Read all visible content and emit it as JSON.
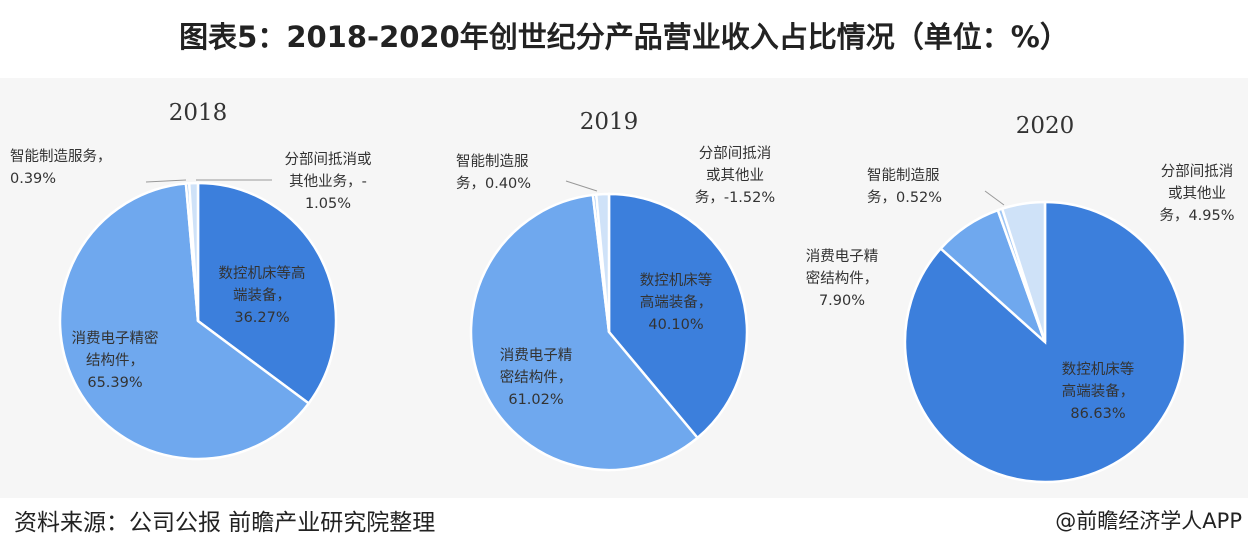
{
  "title": "图表5：2018-2020年创世纪分产品营业收入占比情况（单位：%）",
  "source": "资料来源：公司公报  前瞻产业研究院整理",
  "brand": "@前瞻经济学人APP",
  "colors": {
    "cnc": "#3c7fdc",
    "consumer": "#6fa8ee",
    "smart": "#9fc6f4",
    "other": "#cfe2f8",
    "gap": "#ffffff"
  },
  "chart_data": [
    {
      "type": "pie",
      "title": "2018",
      "slices": [
        {
          "name": "数控机床等高端装备",
          "value": 36.27,
          "label_lines": [
            "数控机床等高",
            "端装备，",
            "36.27%"
          ]
        },
        {
          "name": "消费电子精密结构件",
          "value": 65.39,
          "label_lines": [
            "消费电子精密",
            "结构件，",
            "65.39%"
          ]
        },
        {
          "name": "智能制造服务",
          "value": 0.39,
          "label_lines": [
            "智能制造服务，",
            "0.39%"
          ]
        },
        {
          "name": "分部间抵消或其他业务",
          "value": -1.05,
          "label_lines": [
            "分部间抵消或",
            "其他业务，-",
            "1.05%"
          ]
        }
      ]
    },
    {
      "type": "pie",
      "title": "2019",
      "slices": [
        {
          "name": "数控机床等高端装备",
          "value": 40.1,
          "label_lines": [
            "数控机床等",
            "高端装备，",
            "40.10%"
          ]
        },
        {
          "name": "消费电子精密结构件",
          "value": 61.02,
          "label_lines": [
            "消费电子精",
            "密结构件，",
            "61.02%"
          ]
        },
        {
          "name": "智能制造服务",
          "value": 0.4,
          "label_lines": [
            "智能制造服",
            "务，0.40%"
          ]
        },
        {
          "name": "分部间抵消或其他业务",
          "value": -1.52,
          "label_lines": [
            "分部间抵消",
            "或其他业",
            "务，-1.52%"
          ]
        }
      ]
    },
    {
      "type": "pie",
      "title": "2020",
      "slices": [
        {
          "name": "数控机床等高端装备",
          "value": 86.63,
          "label_lines": [
            "数控机床等",
            "高端装备，",
            "86.63%"
          ]
        },
        {
          "name": "消费电子精密结构件",
          "value": 7.9,
          "label_lines": [
            "消费电子精",
            "密结构件，",
            "7.90%"
          ]
        },
        {
          "name": "智能制造服务",
          "value": 0.52,
          "label_lines": [
            "智能制造服",
            "务，0.52%"
          ]
        },
        {
          "name": "分部间抵消或其他业务",
          "value": 4.95,
          "label_lines": [
            "分部间抵消",
            "或其他业",
            "务，4.95%"
          ]
        }
      ]
    }
  ]
}
